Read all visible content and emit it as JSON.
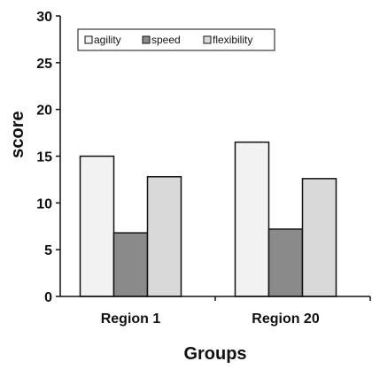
{
  "chart_data": {
    "type": "bar",
    "categories": [
      "Region 1",
      "Region 20"
    ],
    "series": [
      {
        "name": "agility",
        "values": [
          15.0,
          16.5
        ],
        "color": "#f2f2f2"
      },
      {
        "name": "speed",
        "values": [
          6.8,
          7.2
        ],
        "color": "#8a8a8a"
      },
      {
        "name": "flexibility",
        "values": [
          12.8,
          12.6
        ],
        "color": "#d9d9d9"
      }
    ],
    "xlabel": "Groups",
    "ylabel": "score",
    "ylim": [
      0,
      30
    ],
    "yticks": [
      0,
      5,
      10,
      15,
      20,
      25,
      30
    ],
    "grid": false,
    "legend_position": "top-left"
  }
}
